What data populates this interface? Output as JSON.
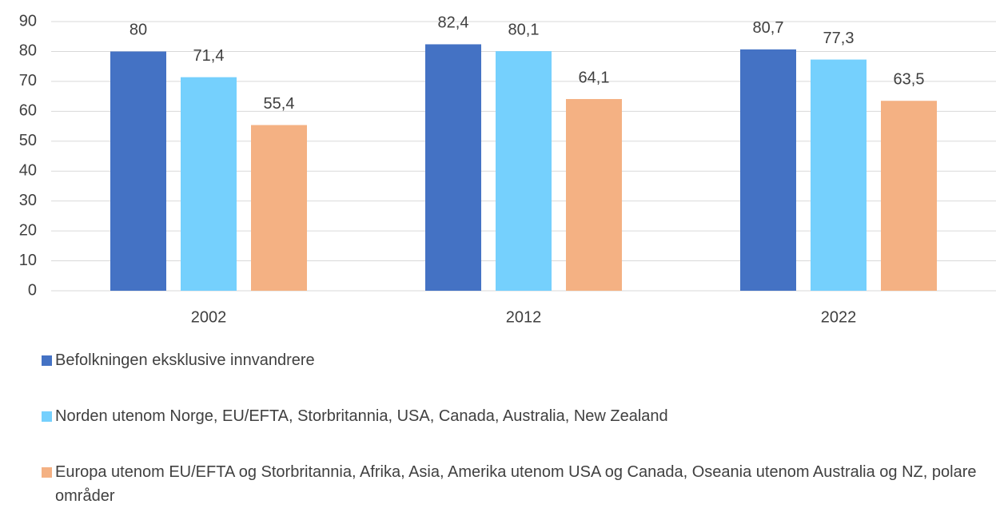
{
  "chart_data": {
    "type": "bar",
    "categories": [
      "2002",
      "2012",
      "2022"
    ],
    "series": [
      {
        "name": "Befolkningen eksklusive innvandrere",
        "color": "#4472c4",
        "values": [
          80,
          82.4,
          80.7
        ],
        "value_labels": [
          "80",
          "82,4",
          "80,7"
        ]
      },
      {
        "name": "Norden utenom Norge, EU/EFTA,  Storbritannia, USA, Canada, Australia, New Zealand",
        "color": "#75d0fd",
        "values": [
          71.4,
          80.1,
          77.3
        ],
        "value_labels": [
          "71,4",
          "80,1",
          "77,3"
        ]
      },
      {
        "name": "Europa utenom EU/EFTA og Storbritannia, Afrika, Asia, Amerika utenom USA og Canada, Oseania utenom Australia og NZ, polare områder",
        "color": "#f4b183",
        "values": [
          55.4,
          64.1,
          63.5
        ],
        "value_labels": [
          "55,4",
          "64,1",
          "63,5"
        ]
      }
    ],
    "ylim": [
      0,
      90
    ],
    "yticks": [
      0,
      10,
      20,
      30,
      40,
      50,
      60,
      70,
      80,
      90
    ],
    "grid": true,
    "legend": "bottom"
  }
}
